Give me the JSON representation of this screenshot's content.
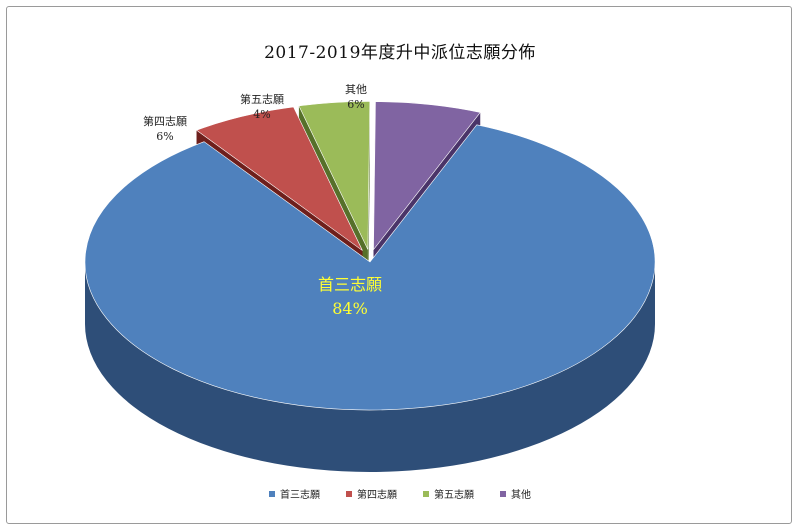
{
  "chart_data": {
    "type": "pie",
    "title": "2017-2019年度升中派位志願分佈",
    "style": "3d-exploded",
    "slices": [
      {
        "label": "首三志願",
        "percent_label": "84%",
        "value": 84,
        "color": "#4F81BD",
        "side": "#2E4E78",
        "label_color": "#FFFF33"
      },
      {
        "label": "第四志願",
        "percent_label": "6%",
        "value": 6,
        "color": "#C0504D",
        "side": "#6E1F1C",
        "label_color": "#222222"
      },
      {
        "label": "第五志願",
        "percent_label": "4%",
        "value": 4,
        "color": "#9BBB59",
        "side": "#56702A",
        "label_color": "#222222"
      },
      {
        "label": "其他",
        "percent_label": "6%",
        "value": 6,
        "color": "#8064A2",
        "side": "#4A3468",
        "label_color": "#222222"
      }
    ],
    "legend_position": "bottom"
  }
}
